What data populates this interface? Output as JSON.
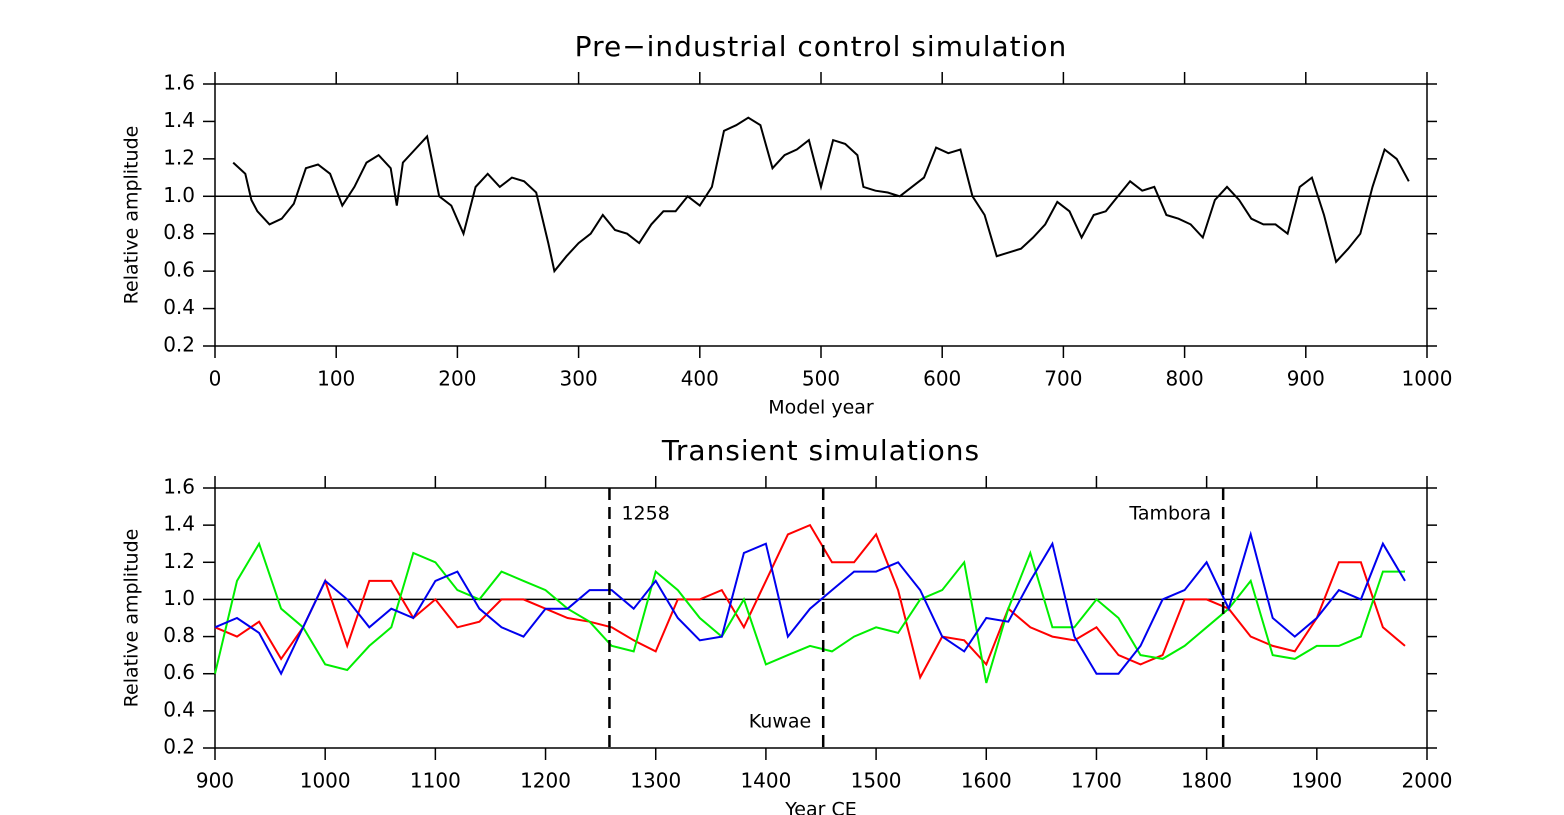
{
  "chart_data": [
    {
      "type": "line",
      "title": "Pre−industrial control simulation",
      "xlabel": "Model year",
      "ylabel": "Relative amplitude",
      "xlim": [
        0,
        1000
      ],
      "xticks": [
        0,
        100,
        200,
        300,
        400,
        500,
        600,
        700,
        800,
        900,
        1000
      ],
      "ylim": [
        0.2,
        1.6
      ],
      "yticks": [
        0.2,
        0.4,
        0.6,
        0.8,
        {
          "value": 1.0,
          "label": "1.0"
        },
        1.2,
        1.4,
        1.6
      ],
      "hline": 1.0,
      "x": [
        15,
        25,
        30,
        35,
        45,
        55,
        65,
        75,
        85,
        95,
        105,
        115,
        125,
        135,
        145,
        150,
        155,
        165,
        175,
        185,
        195,
        205,
        215,
        225,
        235,
        245,
        255,
        265,
        275,
        280,
        290,
        300,
        310,
        320,
        330,
        340,
        350,
        360,
        370,
        380,
        390,
        400,
        410,
        420,
        430,
        440,
        450,
        460,
        470,
        480,
        490,
        500,
        510,
        520,
        530,
        535,
        545,
        555,
        565,
        575,
        585,
        595,
        605,
        615,
        625,
        635,
        645,
        655,
        665,
        675,
        685,
        695,
        705,
        715,
        725,
        735,
        745,
        755,
        765,
        775,
        785,
        795,
        805,
        815,
        825,
        835,
        845,
        855,
        865,
        875,
        885,
        895,
        905,
        915,
        925,
        935,
        945,
        955,
        965,
        975,
        985
      ],
      "series": [
        {
          "color": "#000000",
          "values": [
            1.18,
            1.12,
            0.98,
            0.92,
            0.85,
            0.88,
            0.96,
            1.15,
            1.17,
            1.12,
            0.95,
            1.05,
            1.18,
            1.22,
            1.15,
            0.95,
            1.18,
            1.25,
            1.32,
            1.0,
            0.95,
            0.8,
            1.05,
            1.12,
            1.05,
            1.1,
            1.08,
            1.02,
            0.75,
            0.6,
            0.68,
            0.75,
            0.8,
            0.9,
            0.82,
            0.8,
            0.75,
            0.85,
            0.92,
            0.92,
            1.0,
            0.95,
            1.05,
            1.35,
            1.38,
            1.42,
            1.38,
            1.15,
            1.22,
            1.25,
            1.3,
            1.05,
            1.3,
            1.28,
            1.22,
            1.05,
            1.03,
            1.02,
            1.0,
            1.05,
            1.1,
            1.26,
            1.23,
            1.25,
            1.0,
            0.9,
            0.68,
            0.7,
            0.72,
            0.78,
            0.85,
            0.97,
            0.92,
            0.78,
            0.9,
            0.92,
            1.0,
            1.08,
            1.03,
            1.05,
            0.9,
            0.88,
            0.85,
            0.78,
            0.98,
            1.05,
            0.98,
            0.88,
            0.85,
            0.85,
            0.8,
            1.05,
            1.1,
            0.9,
            0.65,
            0.72,
            0.8,
            1.05,
            1.25,
            1.2,
            1.08
          ]
        }
      ]
    },
    {
      "type": "line",
      "title": "Transient simulations",
      "xlabel": "Year CE",
      "ylabel": "Relative amplitude",
      "xlim": [
        900,
        2000
      ],
      "xticks": [
        900,
        1000,
        1100,
        1200,
        1300,
        1400,
        1500,
        1600,
        1700,
        1800,
        1900,
        2000
      ],
      "ylim": [
        0.2,
        1.6
      ],
      "yticks": [
        0.2,
        0.4,
        0.6,
        0.8,
        {
          "value": 1.0,
          "label": "1.0"
        },
        1.2,
        1.4,
        1.6
      ],
      "hline": 1.0,
      "vlines": [
        {
          "value": 1258,
          "label": "1258"
        },
        {
          "value": 1452,
          "label": "Kuwae"
        },
        {
          "value": 1815,
          "label": "Tambora"
        }
      ],
      "x": [
        900,
        920,
        940,
        960,
        980,
        1000,
        1020,
        1040,
        1060,
        1080,
        1100,
        1120,
        1140,
        1160,
        1180,
        1200,
        1220,
        1240,
        1260,
        1280,
        1300,
        1320,
        1340,
        1360,
        1380,
        1400,
        1420,
        1440,
        1460,
        1480,
        1500,
        1520,
        1540,
        1560,
        1580,
        1600,
        1620,
        1640,
        1660,
        1680,
        1700,
        1720,
        1740,
        1760,
        1780,
        1800,
        1820,
        1840,
        1860,
        1880,
        1900,
        1920,
        1940,
        1960,
        1980
      ],
      "series": [
        {
          "color": "#ff0000",
          "values": [
            0.85,
            0.8,
            0.88,
            0.68,
            0.85,
            1.1,
            0.75,
            1.1,
            1.1,
            0.9,
            1.0,
            0.85,
            0.88,
            1.0,
            1.0,
            0.95,
            0.9,
            0.88,
            0.85,
            0.78,
            0.72,
            1.0,
            1.0,
            1.05,
            0.85,
            1.1,
            1.35,
            1.4,
            1.2,
            1.2,
            1.35,
            1.05,
            0.58,
            0.8,
            0.78,
            0.65,
            0.95,
            0.85,
            0.8,
            0.78,
            0.85,
            0.7,
            0.65,
            0.7,
            1.0,
            1.0,
            0.95,
            0.8,
            0.75,
            0.72,
            0.9,
            1.2,
            1.2,
            0.85,
            0.75
          ]
        },
        {
          "color": "#00ee00",
          "values": [
            0.6,
            1.1,
            1.3,
            0.95,
            0.85,
            0.65,
            0.62,
            0.75,
            0.85,
            1.25,
            1.2,
            1.05,
            1.0,
            1.15,
            1.1,
            1.05,
            0.95,
            0.88,
            0.75,
            0.72,
            1.15,
            1.05,
            0.9,
            0.8,
            1.0,
            0.65,
            0.7,
            0.75,
            0.72,
            0.8,
            0.85,
            0.82,
            1.0,
            1.05,
            1.2,
            0.55,
            0.95,
            1.25,
            0.85,
            0.85,
            1.0,
            0.9,
            0.7,
            0.68,
            0.75,
            0.85,
            0.95,
            1.1,
            0.7,
            0.68,
            0.75,
            0.75,
            0.8,
            1.15,
            1.15
          ]
        },
        {
          "color": "#0000ee",
          "values": [
            0.85,
            0.9,
            0.82,
            0.6,
            0.85,
            1.1,
            1.0,
            0.85,
            0.95,
            0.9,
            1.1,
            1.15,
            0.95,
            0.85,
            0.8,
            0.95,
            0.95,
            1.05,
            1.05,
            0.95,
            1.1,
            0.9,
            0.78,
            0.8,
            1.25,
            1.3,
            0.8,
            0.95,
            1.05,
            1.15,
            1.15,
            1.2,
            1.05,
            0.8,
            0.72,
            0.9,
            0.88,
            1.1,
            1.3,
            0.8,
            0.6,
            0.6,
            0.75,
            1.0,
            1.05,
            1.2,
            0.95,
            1.35,
            0.9,
            0.8,
            0.9,
            1.05,
            1.0,
            1.3,
            1.1
          ]
        }
      ]
    }
  ]
}
